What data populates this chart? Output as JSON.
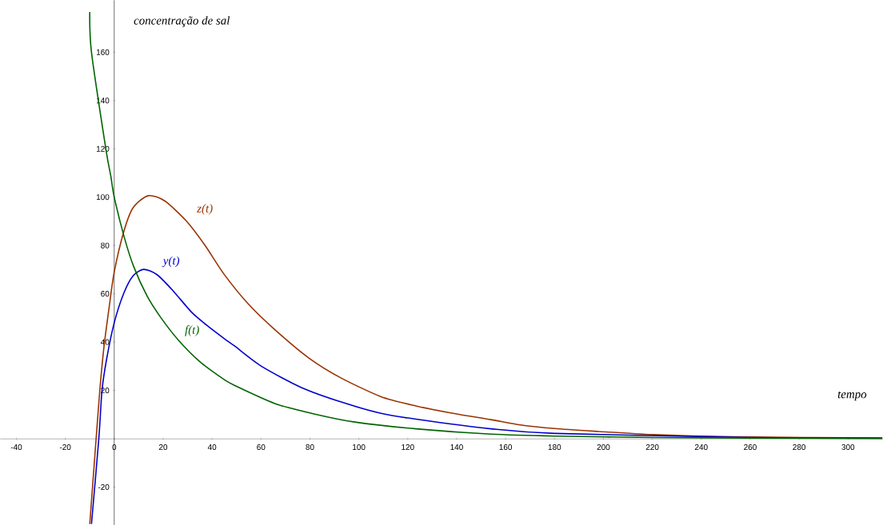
{
  "chart_data": {
    "type": "line",
    "xlabel": "tempo",
    "ylabel": "concentração de sal",
    "xlim": [
      -46.6,
      314.2
    ],
    "ylim": [
      -35.7,
      181.5
    ],
    "xticks": [
      -40,
      -20,
      0,
      20,
      40,
      60,
      80,
      100,
      120,
      140,
      160,
      180,
      200,
      220,
      240,
      260,
      280,
      300
    ],
    "yticks": [
      -20,
      20,
      40,
      60,
      80,
      100,
      120,
      140,
      160
    ],
    "grid": false,
    "legend": false,
    "series": [
      {
        "name": "z(t)",
        "color": "#993300",
        "x": [
          -10,
          -7.4,
          -5.9,
          -4.2,
          -2,
          0,
          3.9,
          7.7,
          13.9,
          20.7,
          29.4,
          37,
          44.9,
          54.7,
          65.6,
          79.7,
          92.8,
          109.1,
          123.3,
          137.5,
          154,
          166,
          180,
          198,
          220,
          253,
          314
        ],
        "values": [
          -35.3,
          0,
          20,
          38,
          55,
          69,
          85.7,
          95.6,
          100.6,
          98.4,
          90.2,
          80.2,
          68.1,
          55.9,
          45.2,
          33.3,
          25.1,
          17.4,
          13.6,
          10.7,
          7.9,
          5.7,
          4.2,
          3.0,
          1.7,
          0.8,
          0.3
        ]
      },
      {
        "name": "y(t)",
        "color": "#0000cc",
        "x": [
          -9.3,
          -6.3,
          -5,
          -3.1,
          0,
          3.9,
          7.7,
          12,
          17.5,
          24,
          31.6,
          38.4,
          44.9,
          49.3,
          60.2,
          76.5,
          92.8,
          109.1,
          123.3,
          154,
          180,
          221,
          260,
          314
        ],
        "values": [
          -35.3,
          0,
          20,
          33,
          48,
          60.2,
          67.4,
          70.1,
          67.9,
          61.3,
          52.4,
          46.5,
          41.5,
          38.3,
          30,
          21.2,
          15.2,
          10.5,
          8.1,
          4.1,
          2.2,
          null,
          0.5,
          0.2
        ]
      },
      {
        "name": "f(t)",
        "color": "#006400",
        "x": [
          -10,
          -9.3,
          -3.4,
          -1.4,
          0,
          4.1,
          7.9,
          13.3,
          18.8,
          26.4,
          35.1,
          44.9,
          49.3,
          65.6,
          82,
          98.3,
          123.3,
          154,
          180,
          220,
          260,
          314
        ],
        "values": [
          176.6,
          160,
          119.8,
          108.7,
          100,
          83.4,
          71.4,
          59.3,
          50.5,
          40.6,
          31.8,
          24.5,
          22,
          14.6,
          10.2,
          6.9,
          4.1,
          1.9,
          1.1,
          0.5,
          0.3,
          0.1
        ]
      }
    ]
  }
}
